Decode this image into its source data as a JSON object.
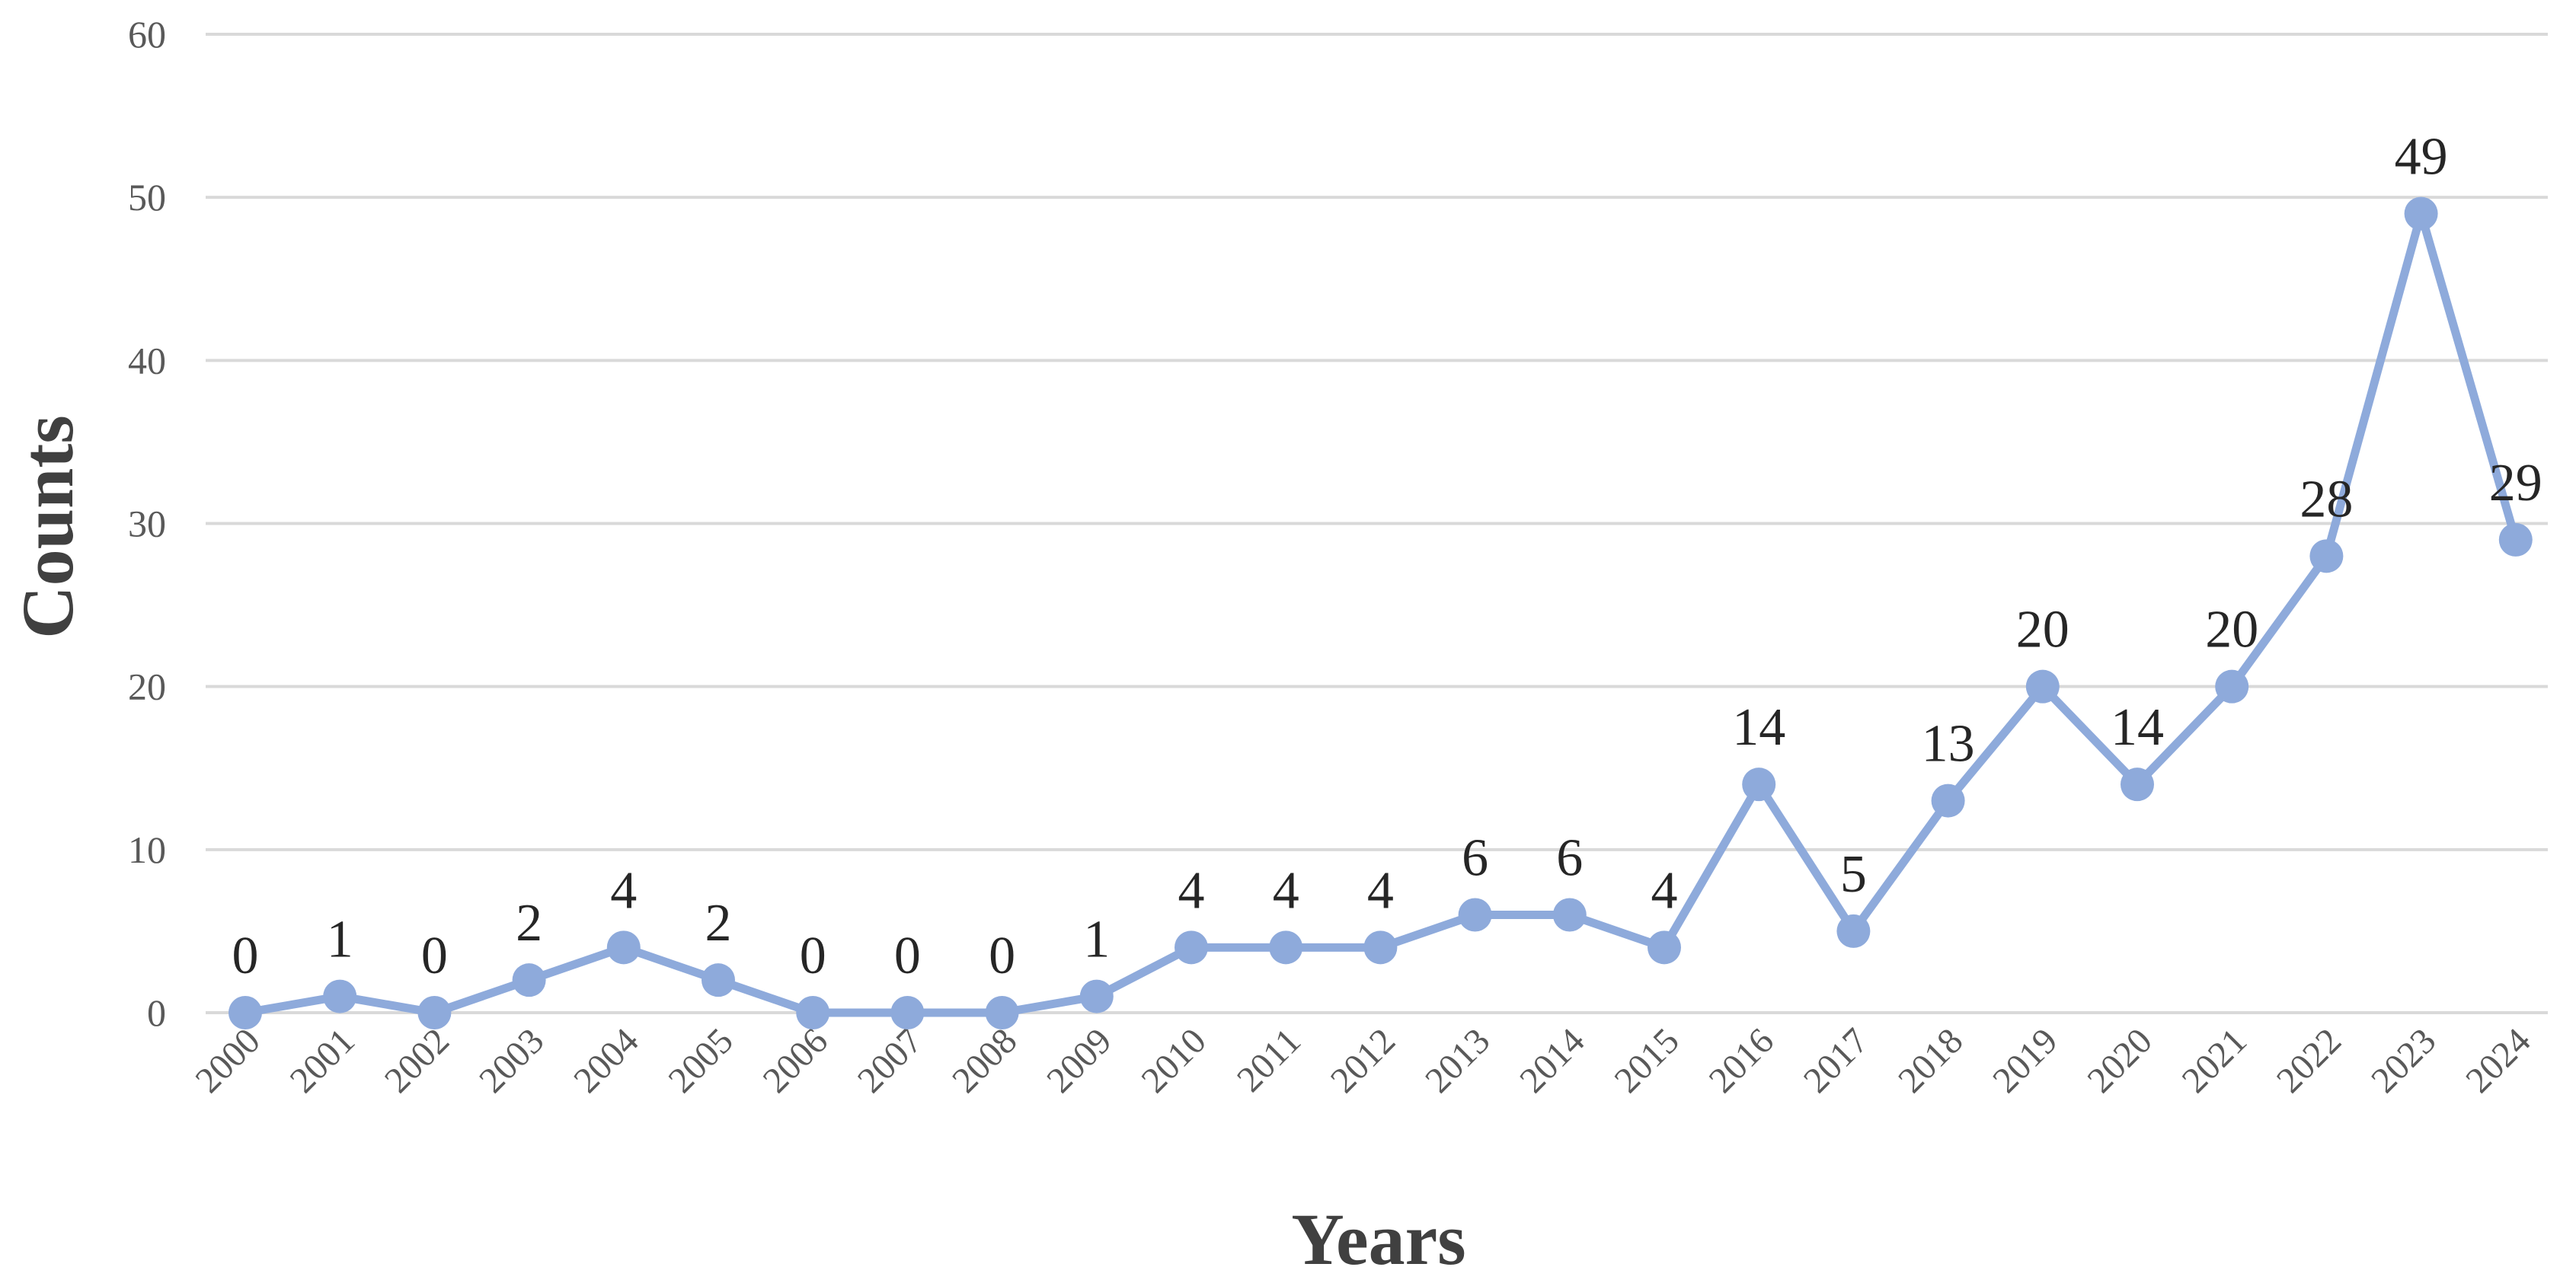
{
  "chart_data": {
    "type": "line",
    "title": "",
    "xlabel": "Years",
    "ylabel": "Counts",
    "x": [
      "2000",
      "2001",
      "2002",
      "2003",
      "2004",
      "2005",
      "2006",
      "2007",
      "2008",
      "2009",
      "2010",
      "2011",
      "2012",
      "2013",
      "2014",
      "2015",
      "2016",
      "2017",
      "2018",
      "2019",
      "2020",
      "2021",
      "2022",
      "2023",
      "2024"
    ],
    "series": [
      {
        "values": [
          0,
          1,
          0,
          2,
          4,
          2,
          0,
          0,
          0,
          1,
          4,
          4,
          4,
          6,
          6,
          4,
          14,
          5,
          13,
          20,
          14,
          20,
          28,
          49,
          29
        ],
        "color": "#8eaadb"
      }
    ],
    "ylim": [
      0,
      60
    ],
    "yticks": [
      0,
      10,
      20,
      30,
      40,
      50,
      60
    ],
    "grid": true,
    "legend": "none",
    "data_labels": true
  }
}
